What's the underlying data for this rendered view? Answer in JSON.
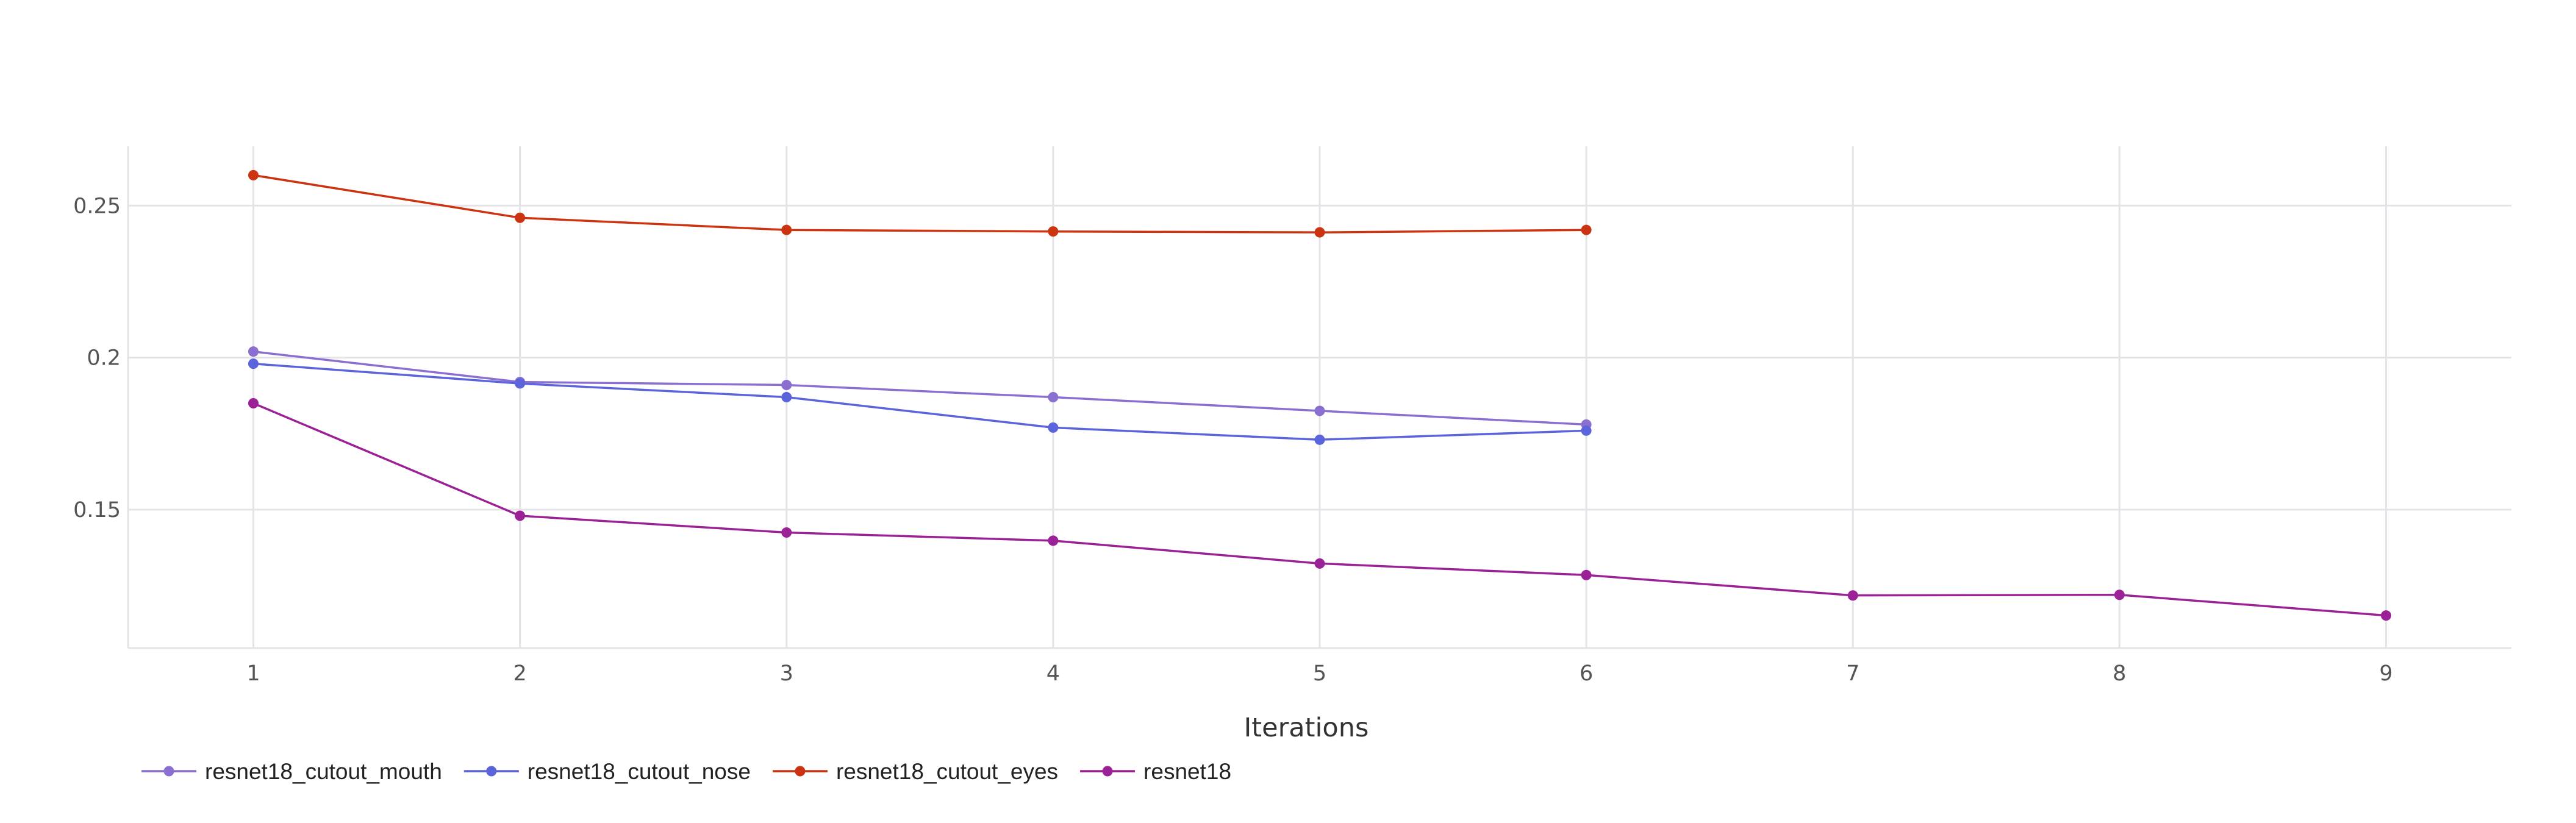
{
  "chart_data": {
    "type": "line",
    "title": "",
    "xlabel": "Iterations",
    "ylabel": "",
    "x_ticks": [
      "1",
      "2",
      "3",
      "4",
      "5",
      "6",
      "7",
      "8",
      "9"
    ],
    "y_ticks": [
      "0.15",
      "0.2",
      "0.25"
    ],
    "y_tick_values": [
      0.15,
      0.2,
      0.25
    ],
    "xlim": [
      0.53,
      9.47
    ],
    "ylim": [
      0.1045,
      0.2695
    ],
    "grid": true,
    "legend_position": "bottom-left",
    "series": [
      {
        "name": "resnet18_cutout_mouth",
        "color": "#8a6fd0",
        "x": [
          1,
          2,
          3,
          4,
          5,
          6
        ],
        "y": [
          0.202,
          0.192,
          0.191,
          0.187,
          0.1825,
          0.178
        ]
      },
      {
        "name": "resnet18_cutout_nose",
        "color": "#5b64db",
        "x": [
          1,
          2,
          3,
          4,
          5,
          6
        ],
        "y": [
          0.198,
          0.1915,
          0.187,
          0.177,
          0.173,
          0.176
        ]
      },
      {
        "name": "resnet18_cutout_eyes",
        "color": "#cc3311",
        "x": [
          1,
          2,
          3,
          4,
          5,
          6
        ],
        "y": [
          0.26,
          0.246,
          0.242,
          0.2415,
          0.2412,
          0.242
        ]
      },
      {
        "name": "resnet18",
        "color": "#9b2196",
        "x": [
          1,
          2,
          3,
          4,
          5,
          6,
          7,
          8,
          9
        ],
        "y": [
          0.185,
          0.148,
          0.1425,
          0.1398,
          0.1323,
          0.1285,
          0.1218,
          0.122,
          0.1152
        ]
      }
    ]
  }
}
